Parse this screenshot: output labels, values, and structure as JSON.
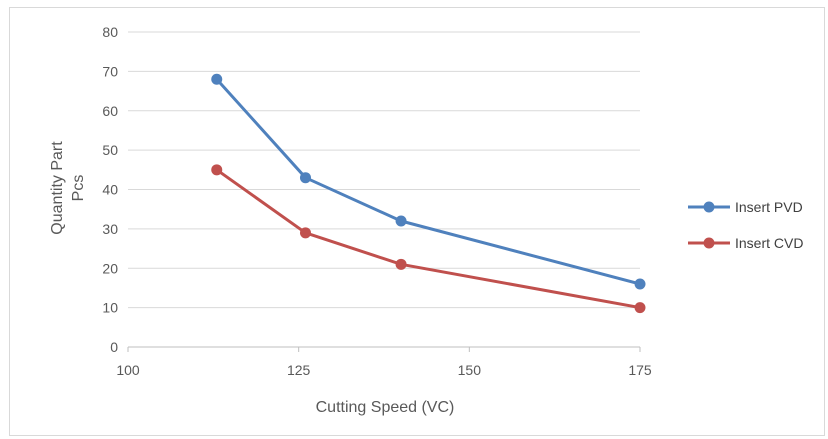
{
  "chart_data": {
    "type": "scatter",
    "title": "",
    "xlabel": "Cutting Speed (VC)",
    "ylabel_lines": [
      "Quantity Part",
      "Pcs"
    ],
    "xlim": [
      100,
      175
    ],
    "ylim": [
      0,
      80
    ],
    "xticks": [
      100,
      125,
      150,
      175
    ],
    "yticks": [
      0,
      10,
      20,
      30,
      40,
      50,
      60,
      70,
      80
    ],
    "grid": "horizontal",
    "legend_position": "right",
    "series": [
      {
        "name": "Insert PVD",
        "color": "#4f81bd",
        "x": [
          113,
          126,
          140,
          175
        ],
        "y": [
          68,
          43,
          32,
          16
        ]
      },
      {
        "name": "Insert CVD",
        "color": "#c0504d",
        "x": [
          113,
          126,
          140,
          175
        ],
        "y": [
          45,
          29,
          21,
          10
        ]
      }
    ]
  }
}
